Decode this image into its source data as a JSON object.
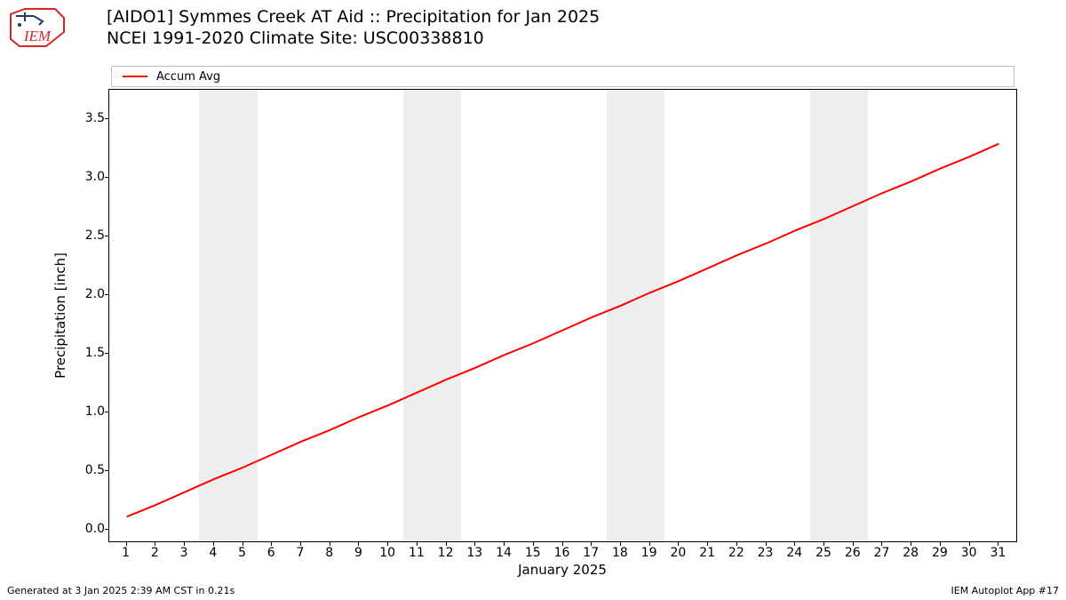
{
  "logo": {
    "text": "IEM",
    "outline_color": "#d62728",
    "accent_color": "#1f3a6e"
  },
  "title_line1": "[AIDO1] Symmes Creek  AT Aid :: Precipitation for Jan 2025",
  "title_line2": "NCEI 1991-2020 Climate Site: USC00338810",
  "legend": {
    "label": "Accum Avg",
    "color": "#ff0000"
  },
  "chart": {
    "type": "line",
    "xlabel": "January 2025",
    "ylabel": "Precipitation [inch]",
    "xlim": [
      0.4,
      31.6
    ],
    "ylim": [
      -0.1,
      3.75
    ],
    "xticks": [
      1,
      2,
      3,
      4,
      5,
      6,
      7,
      8,
      9,
      10,
      11,
      12,
      13,
      14,
      15,
      16,
      17,
      18,
      19,
      20,
      21,
      22,
      23,
      24,
      25,
      26,
      27,
      28,
      29,
      30,
      31
    ],
    "yticks": [
      0.0,
      0.5,
      1.0,
      1.5,
      2.0,
      2.5,
      3.0,
      3.5
    ],
    "ytick_labels": [
      "0.0",
      "0.5",
      "1.0",
      "1.5",
      "2.0",
      "2.5",
      "3.0",
      "3.5"
    ],
    "weekend_bands": [
      [
        3.5,
        5.5
      ],
      [
        10.5,
        12.5
      ],
      [
        17.5,
        19.5
      ],
      [
        24.5,
        26.5
      ]
    ],
    "band_color": "#eeeeee",
    "line_color": "#ff0000",
    "line_width": 2,
    "background_color": "#ffffff",
    "border_color": "#000000",
    "tick_fontsize": 14,
    "label_fontsize": 15,
    "series": {
      "x": [
        1,
        2,
        3,
        4,
        5,
        6,
        7,
        8,
        9,
        10,
        11,
        12,
        13,
        14,
        15,
        16,
        17,
        18,
        19,
        20,
        21,
        22,
        23,
        24,
        25,
        26,
        27,
        28,
        29,
        30,
        31
      ],
      "y": [
        0.11,
        0.21,
        0.32,
        0.43,
        0.53,
        0.64,
        0.75,
        0.85,
        0.96,
        1.06,
        1.17,
        1.28,
        1.38,
        1.49,
        1.59,
        1.7,
        1.81,
        1.91,
        2.02,
        2.12,
        2.23,
        2.34,
        2.44,
        2.55,
        2.65,
        2.76,
        2.87,
        2.97,
        3.08,
        3.18,
        3.29
      ]
    }
  },
  "footer_left": "Generated at 3 Jan 2025 2:39 AM CST in 0.21s",
  "footer_right": "IEM Autoplot App #17"
}
